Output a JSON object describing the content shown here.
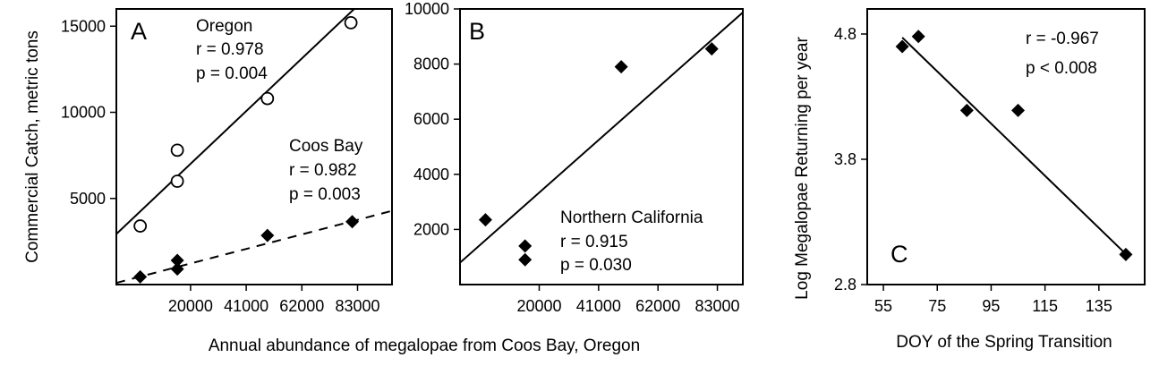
{
  "figure": {
    "shared_xlabel": "Annual abundance of megalopae from Coos Bay, Oregon"
  },
  "chart_data": [
    {
      "panel": "A",
      "type": "scatter",
      "ylabel": "Commercial Catch, metric tons",
      "xlim": [
        -8000,
        96000
      ],
      "ylim": [
        0,
        16000
      ],
      "x_ticks": [
        20000,
        41000,
        62000,
        83000
      ],
      "y_ticks": [
        5000,
        10000,
        15000
      ],
      "series": [
        {
          "name": "Oregon",
          "marker": "open-circle",
          "points": [
            [
              1000,
              3400
            ],
            [
              15000,
              6000
            ],
            [
              15000,
              7800
            ],
            [
              49000,
              10800
            ],
            [
              80500,
              15200
            ]
          ],
          "fit": {
            "style": "solid",
            "intercept": 4100,
            "slope": 0.1456
          },
          "stats": [
            "r = 0.978",
            "p = 0.004"
          ]
        },
        {
          "name": "Coos Bay",
          "marker": "filled-diamond",
          "points": [
            [
              1000,
              450
            ],
            [
              15000,
              900
            ],
            [
              15000,
              1400
            ],
            [
              49000,
              2850
            ],
            [
              81000,
              3650
            ]
          ],
          "fit": {
            "style": "dashed",
            "intercept": 420,
            "slope": 0.0402
          },
          "stats": [
            "r = 0.982",
            "p = 0.003"
          ]
        }
      ],
      "grid": false
    },
    {
      "panel": "B",
      "type": "scatter",
      "xlim": [
        -8000,
        92000
      ],
      "ylim": [
        0,
        10000
      ],
      "x_ticks": [
        20000,
        41000,
        62000,
        83000
      ],
      "y_ticks": [
        2000,
        4000,
        6000,
        8000,
        10000
      ],
      "series": [
        {
          "name": "Northern California",
          "marker": "filled-diamond",
          "points": [
            [
              1000,
              2350
            ],
            [
              15000,
              1400
            ],
            [
              15000,
              900
            ],
            [
              49000,
              7900
            ],
            [
              81000,
              8550
            ]
          ],
          "fit": {
            "style": "solid",
            "intercept": 1520,
            "slope": 0.0908
          },
          "stats": [
            "r = 0.915",
            "p = 0.030"
          ]
        }
      ],
      "grid": false
    },
    {
      "panel": "C",
      "type": "scatter",
      "xlabel": "DOY of the Spring Transition",
      "ylabel": "Log Megalopae Returning per year",
      "xlim": [
        49,
        152
      ],
      "ylim": [
        2.8,
        5.0
      ],
      "x_ticks": [
        55,
        75,
        95,
        115,
        135
      ],
      "y_ticks": [
        2.8,
        3.8,
        4.8
      ],
      "series": [
        {
          "marker": "filled-diamond",
          "points": [
            [
              62,
              4.7
            ],
            [
              68,
              4.78
            ],
            [
              86,
              4.19
            ],
            [
              105,
              4.19
            ],
            [
              145,
              3.04
            ]
          ],
          "fit": {
            "style": "solid",
            "intercept": 6.0627,
            "slope": -0.02082,
            "x_range": [
              62,
              144
            ]
          },
          "stats": [
            "r = -0.967",
            "p < 0.008"
          ]
        }
      ],
      "grid": false
    }
  ]
}
